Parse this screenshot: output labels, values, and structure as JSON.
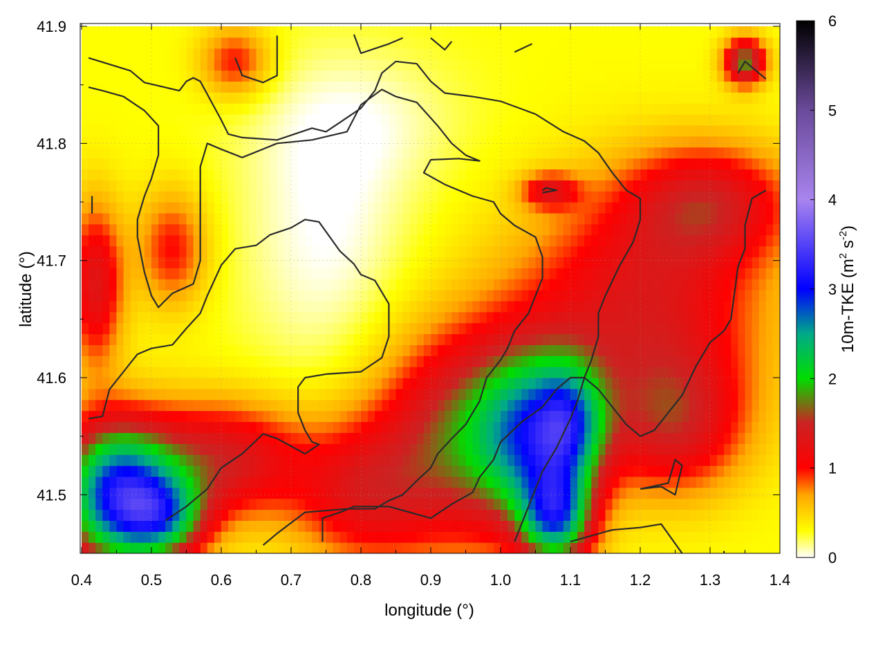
{
  "chart_data": {
    "type": "heatmap",
    "xlabel": "longitude (°)",
    "ylabel": "latitude (°)",
    "colorbar_label": "10m-TKE (m² s⁻²)",
    "colorbar_label_parts": {
      "base": "10m-TKE (m",
      "sup1": "2",
      "mid": " s",
      "sup2": "-2",
      "end": ")"
    },
    "xlim": [
      0.4,
      1.4
    ],
    "ylim": [
      41.45,
      41.9
    ],
    "clim": [
      0,
      6
    ],
    "x_ticks": [
      0.4,
      0.5,
      0.6,
      0.7,
      0.8,
      0.9,
      1.0,
      1.1,
      1.2,
      1.3,
      1.4
    ],
    "x_tick_labels": [
      "0.4",
      "0.5",
      "0.6",
      "0.7",
      "0.8",
      "0.9",
      "1.0",
      "1.1",
      "1.2",
      "1.3",
      "1.4"
    ],
    "y_ticks": [
      41.5,
      41.6,
      41.7,
      41.8,
      41.9
    ],
    "y_tick_labels": [
      "41.5",
      "41.6",
      "41.7",
      "41.8",
      "41.9"
    ],
    "cb_ticks": [
      0,
      1,
      2,
      3,
      4,
      5,
      6
    ],
    "cb_tick_labels": [
      "0",
      "1",
      "2",
      "3",
      "4",
      "5",
      "6"
    ],
    "colormap": [
      {
        "v": 0.0,
        "color": "#ffffff"
      },
      {
        "v": 0.3,
        "color": "#ffff00"
      },
      {
        "v": 0.7,
        "color": "#ffa500"
      },
      {
        "v": 1.0,
        "color": "#ff0000"
      },
      {
        "v": 1.5,
        "color": "#cc2222"
      },
      {
        "v": 2.0,
        "color": "#00dd00"
      },
      {
        "v": 2.5,
        "color": "#00aa88"
      },
      {
        "v": 3.0,
        "color": "#0000ff"
      },
      {
        "v": 4.0,
        "color": "#a884ee"
      },
      {
        "v": 5.0,
        "color": "#6a4a9a"
      },
      {
        "v": 6.0,
        "color": "#000000"
      }
    ],
    "field_background": 0.3,
    "field_features": [
      {
        "lon": 0.45,
        "lat": 41.5,
        "rx": 0.08,
        "ry": 0.06,
        "amp": 2.6
      },
      {
        "lon": 0.52,
        "lat": 41.48,
        "rx": 0.06,
        "ry": 0.035,
        "amp": 1.4
      },
      {
        "lon": 0.6,
        "lat": 41.53,
        "rx": 0.12,
        "ry": 0.05,
        "amp": 1.1
      },
      {
        "lon": 0.42,
        "lat": 41.68,
        "rx": 0.04,
        "ry": 0.07,
        "amp": 1.0
      },
      {
        "lon": 0.53,
        "lat": 41.71,
        "rx": 0.05,
        "ry": 0.05,
        "amp": 0.7
      },
      {
        "lon": 0.95,
        "lat": 41.55,
        "rx": 0.13,
        "ry": 0.09,
        "amp": 1.3
      },
      {
        "lon": 1.05,
        "lat": 41.55,
        "rx": 0.08,
        "ry": 0.07,
        "amp": 1.6
      },
      {
        "lon": 1.08,
        "lat": 41.48,
        "rx": 0.05,
        "ry": 0.04,
        "amp": 1.9
      },
      {
        "lon": 1.1,
        "lat": 41.56,
        "rx": 0.05,
        "ry": 0.05,
        "amp": 1.2
      },
      {
        "lon": 1.2,
        "lat": 41.66,
        "rx": 0.18,
        "ry": 0.1,
        "amp": 1.0
      },
      {
        "lon": 1.25,
        "lat": 41.56,
        "rx": 0.1,
        "ry": 0.06,
        "amp": 0.9
      },
      {
        "lon": 1.3,
        "lat": 41.75,
        "rx": 0.12,
        "ry": 0.05,
        "amp": 0.9
      },
      {
        "lon": 1.07,
        "lat": 41.76,
        "rx": 0.04,
        "ry": 0.015,
        "amp": 0.8
      },
      {
        "lon": 0.62,
        "lat": 41.87,
        "rx": 0.05,
        "ry": 0.03,
        "amp": 0.7
      },
      {
        "lon": 1.35,
        "lat": 41.87,
        "rx": 0.03,
        "ry": 0.02,
        "amp": 1.5
      },
      {
        "lon": 0.8,
        "lat": 41.5,
        "rx": 0.1,
        "ry": 0.06,
        "amp": 0.8
      },
      {
        "lon": 0.75,
        "lat": 41.72,
        "rx": 0.12,
        "ry": 0.12,
        "amp": -0.3
      },
      {
        "lon": 0.8,
        "lat": 41.82,
        "rx": 0.15,
        "ry": 0.06,
        "amp": -0.2
      }
    ],
    "contours": [
      [
        [
          0.41,
          41.873
        ],
        [
          0.47,
          41.862
        ],
        [
          0.49,
          41.852
        ],
        [
          0.54,
          41.845
        ],
        [
          0.55,
          41.853
        ],
        [
          0.56,
          41.856
        ],
        [
          0.57,
          41.853
        ],
        [
          0.6,
          41.82
        ],
        [
          0.61,
          41.808
        ],
        [
          0.63,
          41.805
        ],
        [
          0.68,
          41.803
        ],
        [
          0.73,
          41.813
        ],
        [
          0.75,
          41.81
        ],
        [
          0.77,
          41.818
        ],
        [
          0.8,
          41.83
        ],
        [
          0.82,
          41.845
        ],
        [
          0.83,
          41.86
        ],
        [
          0.85,
          41.87
        ],
        [
          0.88,
          41.868
        ],
        [
          0.9,
          41.853
        ],
        [
          0.92,
          41.843
        ],
        [
          0.96,
          41.84
        ],
        [
          1.0,
          41.836
        ],
        [
          1.05,
          41.825
        ],
        [
          1.09,
          41.81
        ],
        [
          1.12,
          41.802
        ],
        [
          1.14,
          41.792
        ],
        [
          1.16,
          41.775
        ],
        [
          1.18,
          41.76
        ],
        [
          1.2,
          41.753
        ],
        [
          1.2,
          41.735
        ],
        [
          1.19,
          41.716
        ],
        [
          1.17,
          41.695
        ],
        [
          1.15,
          41.67
        ],
        [
          1.14,
          41.655
        ],
        [
          1.14,
          41.635
        ],
        [
          1.13,
          41.615
        ],
        [
          1.12,
          41.6
        ],
        [
          1.11,
          41.58
        ],
        [
          1.1,
          41.565
        ],
        [
          1.08,
          41.54
        ],
        [
          1.06,
          41.52
        ],
        [
          1.04,
          41.49
        ],
        [
          1.02,
          41.46
        ]
      ],
      [
        [
          0.41,
          41.848
        ],
        [
          0.43,
          41.845
        ],
        [
          0.46,
          41.84
        ],
        [
          0.49,
          41.828
        ],
        [
          0.51,
          41.815
        ],
        [
          0.51,
          41.79
        ],
        [
          0.5,
          41.77
        ],
        [
          0.49,
          41.755
        ],
        [
          0.48,
          41.735
        ],
        [
          0.48,
          41.72
        ],
        [
          0.49,
          41.69
        ],
        [
          0.5,
          41.67
        ],
        [
          0.51,
          41.66
        ],
        [
          0.53,
          41.672
        ],
        [
          0.56,
          41.68
        ],
        [
          0.57,
          41.7
        ],
        [
          0.57,
          41.72
        ],
        [
          0.57,
          41.75
        ],
        [
          0.57,
          41.78
        ],
        [
          0.58,
          41.8
        ],
        [
          0.6,
          41.795
        ],
        [
          0.63,
          41.788
        ],
        [
          0.68,
          41.8
        ],
        [
          0.73,
          41.803
        ],
        [
          0.78,
          41.81
        ],
        [
          0.8,
          41.833
        ],
        [
          0.83,
          41.846
        ],
        [
          0.85,
          41.84
        ],
        [
          0.88,
          41.835
        ],
        [
          0.91,
          41.815
        ],
        [
          0.93,
          41.8
        ],
        [
          0.95,
          41.79
        ],
        [
          0.97,
          41.785
        ],
        [
          0.94,
          41.787
        ],
        [
          0.9,
          41.786
        ],
        [
          0.89,
          41.775
        ],
        [
          0.92,
          41.765
        ],
        [
          0.96,
          41.755
        ],
        [
          0.99,
          41.75
        ],
        [
          1.0,
          41.74
        ],
        [
          1.02,
          41.73
        ],
        [
          1.05,
          41.72
        ],
        [
          1.06,
          41.703
        ],
        [
          1.06,
          41.685
        ],
        [
          1.05,
          41.67
        ],
        [
          1.04,
          41.655
        ],
        [
          1.02,
          41.64
        ],
        [
          1.01,
          41.625
        ],
        [
          1.0,
          41.615
        ],
        [
          0.98,
          41.6
        ],
        [
          0.97,
          41.58
        ],
        [
          0.95,
          41.56
        ],
        [
          0.93,
          41.548
        ],
        [
          0.91,
          41.535
        ],
        [
          0.9,
          41.523
        ],
        [
          0.88,
          41.512
        ],
        [
          0.86,
          41.5
        ],
        [
          0.84,
          41.495
        ],
        [
          0.82,
          41.488
        ],
        [
          0.78,
          41.488
        ],
        [
          0.72,
          41.485
        ],
        [
          0.68,
          41.467
        ],
        [
          0.66,
          41.457
        ]
      ],
      [
        [
          0.41,
          41.565
        ],
        [
          0.43,
          41.567
        ],
        [
          0.44,
          41.59
        ],
        [
          0.46,
          41.605
        ],
        [
          0.48,
          41.62
        ],
        [
          0.5,
          41.625
        ],
        [
          0.53,
          41.628
        ],
        [
          0.55,
          41.642
        ],
        [
          0.57,
          41.655
        ],
        [
          0.58,
          41.67
        ],
        [
          0.6,
          41.696
        ],
        [
          0.62,
          41.71
        ],
        [
          0.65,
          41.713
        ],
        [
          0.67,
          41.722
        ],
        [
          0.7,
          41.728
        ],
        [
          0.72,
          41.735
        ],
        [
          0.74,
          41.733
        ],
        [
          0.77,
          41.708
        ],
        [
          0.79,
          41.697
        ],
        [
          0.8,
          41.688
        ],
        [
          0.82,
          41.683
        ],
        [
          0.84,
          41.663
        ],
        [
          0.84,
          41.635
        ],
        [
          0.83,
          41.617
        ],
        [
          0.8,
          41.605
        ],
        [
          0.75,
          41.603
        ],
        [
          0.72,
          41.6
        ],
        [
          0.71,
          41.592
        ],
        [
          0.71,
          41.57
        ],
        [
          0.72,
          41.555
        ],
        [
          0.73,
          41.545
        ],
        [
          0.74,
          41.543
        ],
        [
          0.72,
          41.535
        ],
        [
          0.68,
          41.548
        ],
        [
          0.66,
          41.552
        ],
        [
          0.63,
          41.535
        ],
        [
          0.6,
          41.523
        ],
        [
          0.58,
          41.505
        ],
        [
          0.55,
          41.49
        ],
        [
          0.52,
          41.478
        ]
      ],
      [
        [
          0.745,
          41.46
        ],
        [
          0.745,
          41.48
        ],
        [
          0.77,
          41.485
        ],
        [
          0.79,
          41.49
        ],
        [
          0.84,
          41.49
        ],
        [
          0.87,
          41.485
        ],
        [
          0.9,
          41.48
        ],
        [
          0.93,
          41.492
        ],
        [
          0.96,
          41.502
        ],
        [
          0.97,
          41.515
        ],
        [
          0.99,
          41.53
        ],
        [
          1.0,
          41.545
        ],
        [
          1.03,
          41.562
        ],
        [
          1.06,
          41.575
        ],
        [
          1.08,
          41.59
        ],
        [
          1.1,
          41.6
        ],
        [
          1.12,
          41.6
        ],
        [
          1.14,
          41.59
        ],
        [
          1.16,
          41.575
        ],
        [
          1.18,
          41.56
        ],
        [
          1.2,
          41.55
        ],
        [
          1.22,
          41.555
        ],
        [
          1.24,
          41.57
        ],
        [
          1.26,
          41.585
        ],
        [
          1.28,
          41.61
        ],
        [
          1.3,
          41.63
        ],
        [
          1.32,
          41.64
        ],
        [
          1.33,
          41.65
        ],
        [
          1.34,
          41.695
        ],
        [
          1.35,
          41.71
        ],
        [
          1.35,
          41.73
        ],
        [
          1.36,
          41.753
        ],
        [
          1.38,
          41.76
        ]
      ],
      [
        [
          0.415,
          41.755
        ],
        [
          0.415,
          41.74
        ]
      ],
      [
        [
          0.62,
          41.873
        ],
        [
          0.63,
          41.858
        ],
        [
          0.66,
          41.852
        ],
        [
          0.68,
          41.858
        ],
        [
          0.68,
          41.892
        ]
      ],
      [
        [
          0.79,
          41.893
        ],
        [
          0.8,
          41.877
        ],
        [
          0.84,
          41.885
        ],
        [
          0.86,
          41.89
        ]
      ],
      [
        [
          0.9,
          41.89
        ],
        [
          0.92,
          41.88
        ],
        [
          0.93,
          41.887
        ]
      ],
      [
        [
          1.02,
          41.878
        ],
        [
          1.045,
          41.885
        ]
      ],
      [
        [
          1.1,
          41.46
        ],
        [
          1.13,
          41.465
        ],
        [
          1.16,
          41.47
        ],
        [
          1.2,
          41.472
        ],
        [
          1.23,
          41.475
        ],
        [
          1.26,
          41.45
        ]
      ],
      [
        [
          1.2,
          41.505
        ],
        [
          1.23,
          41.507
        ],
        [
          1.25,
          41.5
        ],
        [
          1.26,
          41.525
        ],
        [
          1.25,
          41.53
        ],
        [
          1.24,
          41.51
        ],
        [
          1.2,
          41.505
        ]
      ],
      [
        [
          1.06,
          41.76
        ],
        [
          1.065,
          41.762
        ],
        [
          1.08,
          41.76
        ],
        [
          1.06,
          41.758
        ]
      ],
      [
        [
          1.34,
          41.86
        ],
        [
          1.35,
          41.87
        ],
        [
          1.38,
          41.855
        ]
      ],
      [
        [
          1.32,
          41.45
        ],
        [
          1.32,
          41.452
        ]
      ]
    ]
  }
}
